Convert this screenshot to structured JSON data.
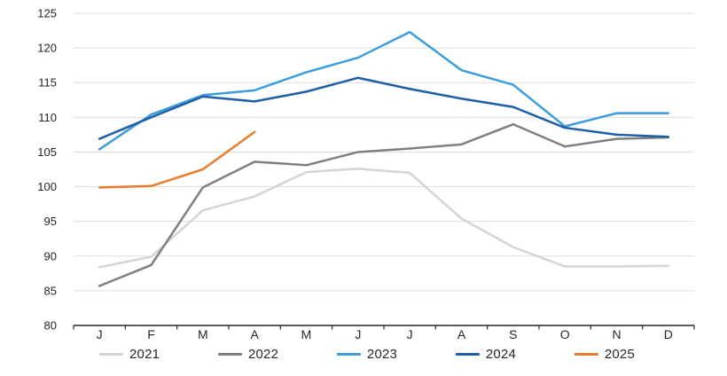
{
  "chart_data": {
    "type": "line",
    "title": "",
    "categories": [
      "J",
      "F",
      "M",
      "A",
      "M",
      "J",
      "J",
      "A",
      "S",
      "O",
      "N",
      "D"
    ],
    "series": [
      {
        "name": "2021",
        "color": "#d4d4d4",
        "values": [
          88.4,
          89.9,
          96.6,
          98.6,
          102.1,
          102.6,
          102.0,
          95.4,
          91.3,
          88.5,
          88.5,
          88.6
        ]
      },
      {
        "name": "2022",
        "color": "#7f7f7f",
        "values": [
          85.7,
          88.7,
          99.9,
          103.6,
          103.1,
          105.0,
          105.5,
          106.1,
          109.0,
          105.8,
          106.9,
          107.1
        ]
      },
      {
        "name": "2023",
        "color": "#3d9cdb",
        "values": [
          105.4,
          110.4,
          113.2,
          113.9,
          116.5,
          118.6,
          122.3,
          116.8,
          114.7,
          108.7,
          110.6,
          110.6
        ]
      },
      {
        "name": "2024",
        "color": "#1f5fa8",
        "values": [
          106.9,
          110.0,
          113.0,
          112.3,
          113.7,
          115.7,
          114.1,
          112.7,
          111.5,
          108.5,
          107.5,
          107.2
        ]
      },
      {
        "name": "2025",
        "color": "#e87d2d",
        "values": [
          99.9,
          100.1,
          102.5,
          107.9,
          null,
          null,
          null,
          null,
          null,
          null,
          null,
          null
        ]
      }
    ],
    "ylim": [
      80,
      125
    ],
    "ytick_step": 5,
    "grid": "horizontal",
    "legend_position": "bottom",
    "axis_color": "#262626",
    "gridline_color": "#dddddd"
  }
}
